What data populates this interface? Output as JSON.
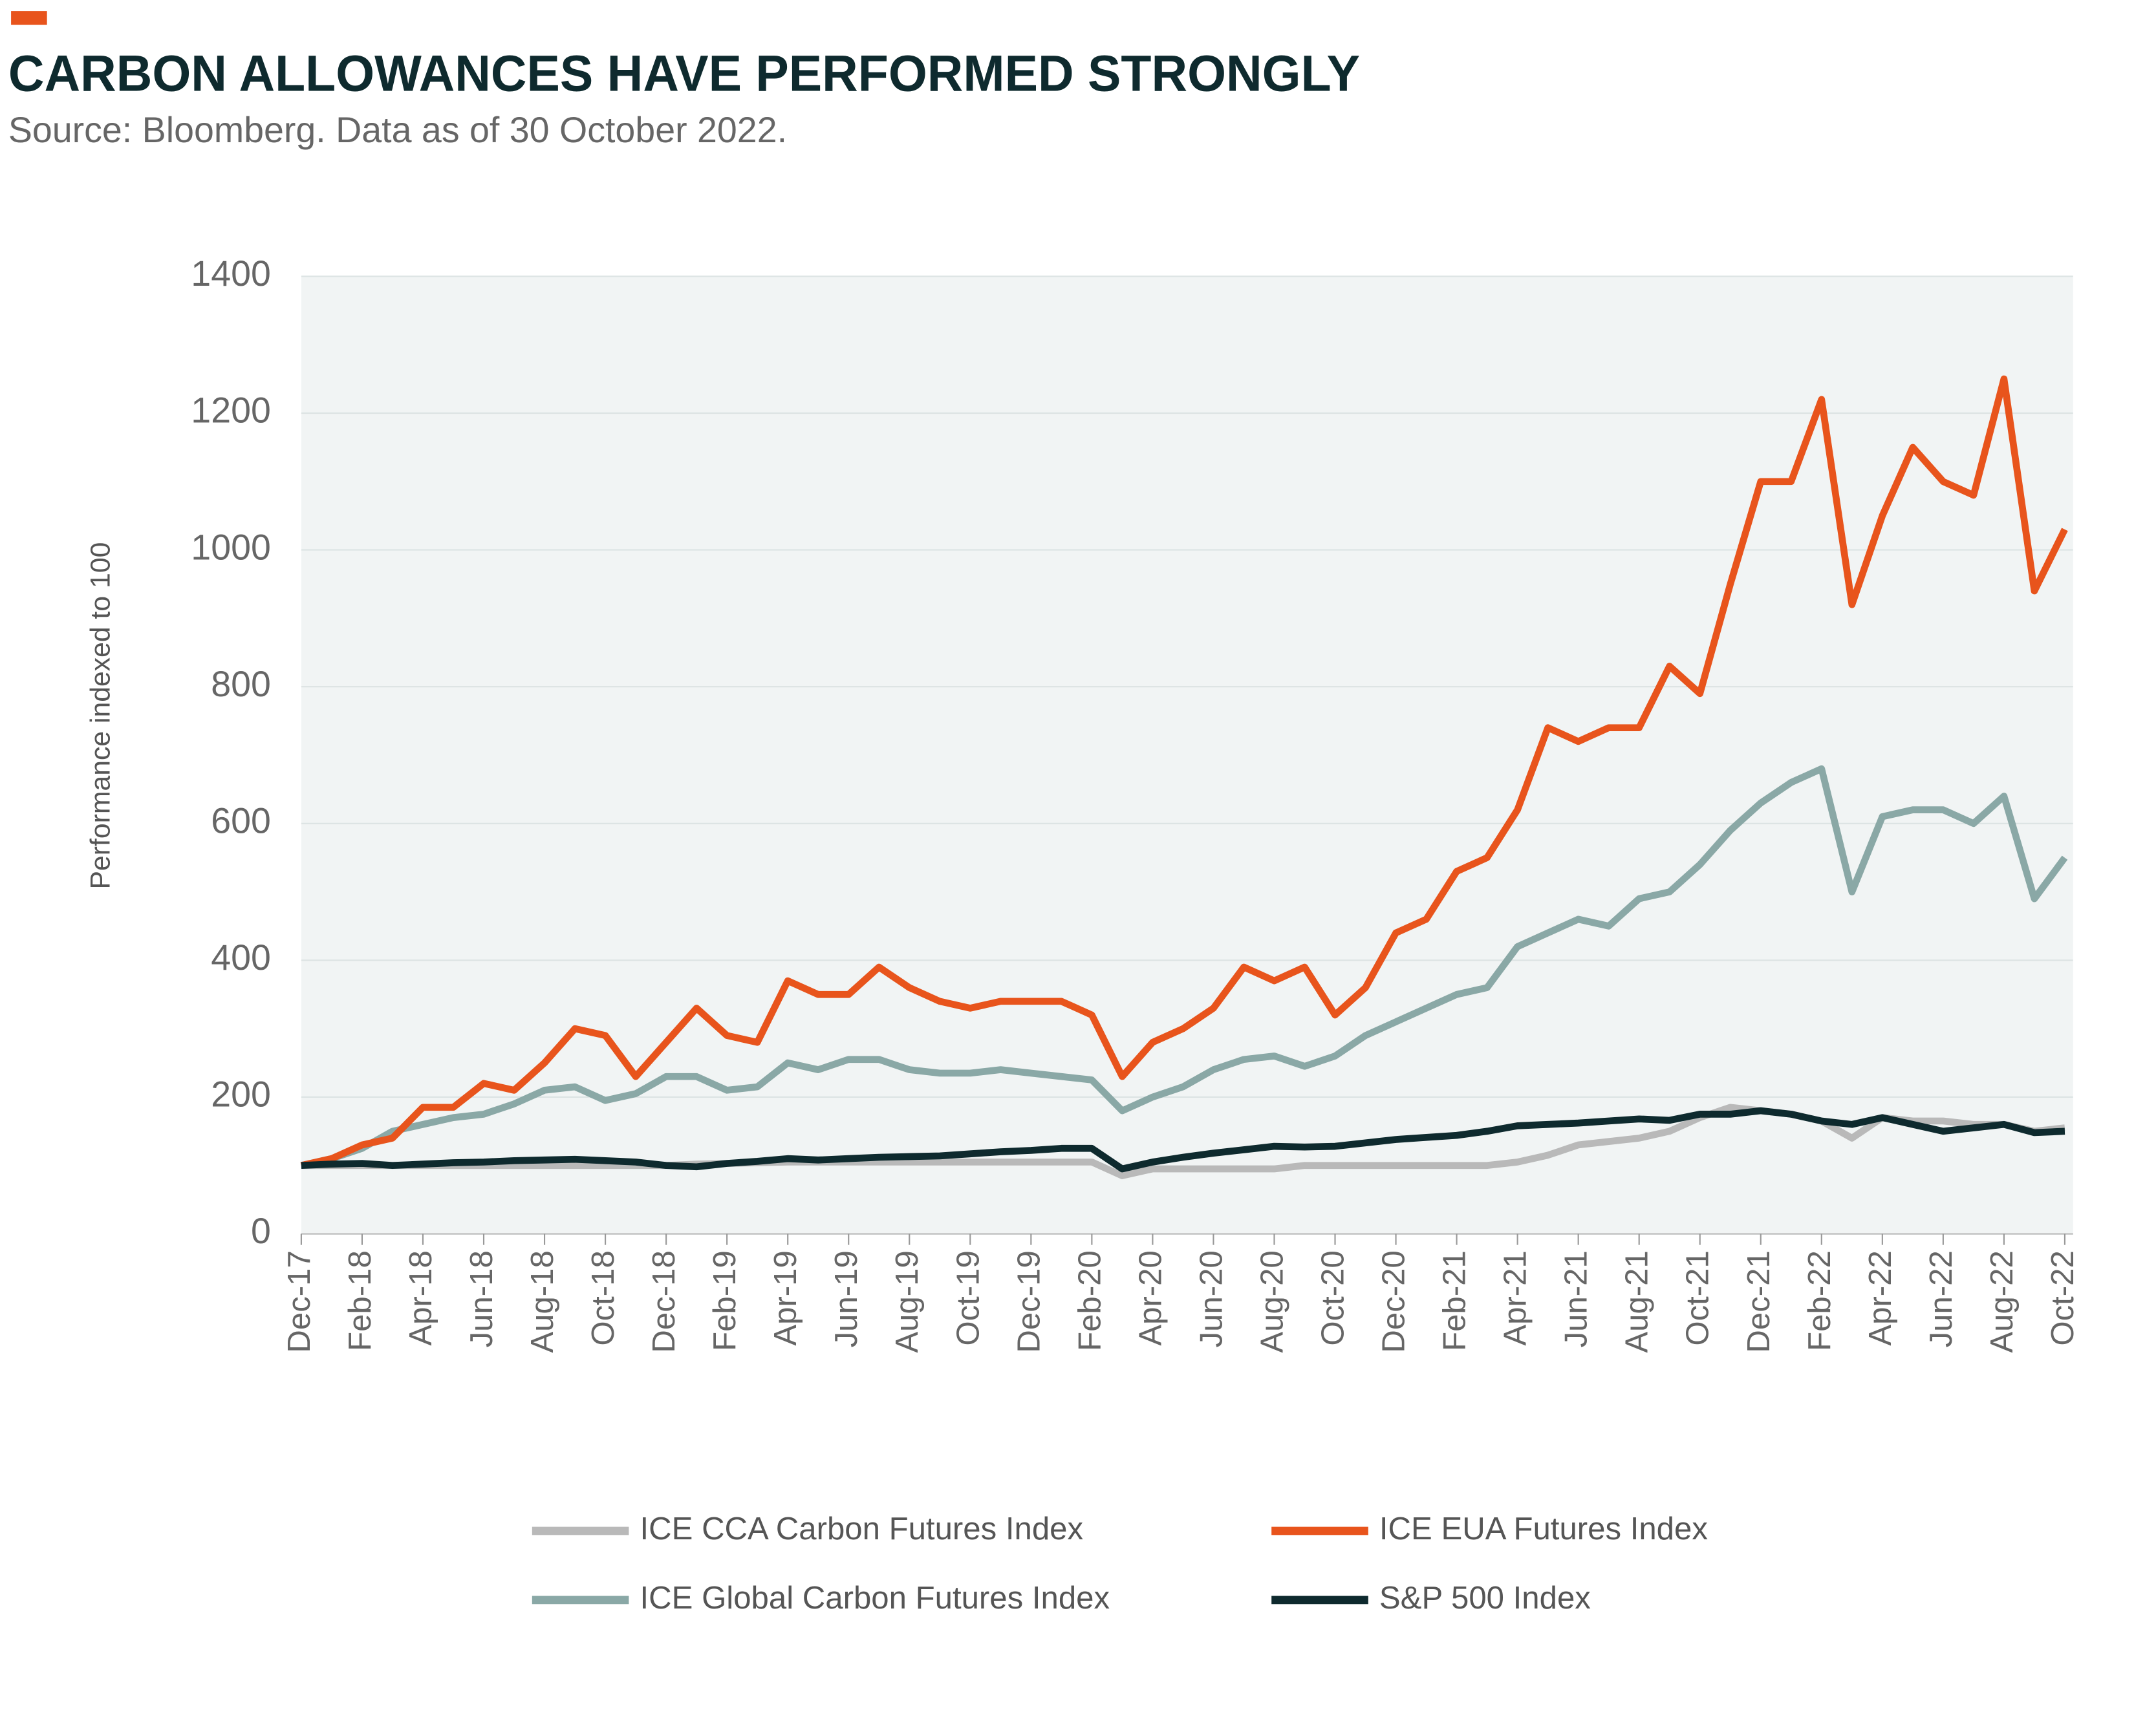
{
  "chart_data": {
    "type": "line",
    "title": "CARBON ALLOWANCES HAVE PERFORMED STRONGLY",
    "subtitle": "Source: Bloomberg. Data as of 30 October 2022.",
    "y_label": "Performance indexed to 100",
    "categories": [
      "Dec-17",
      null,
      "Feb-18",
      null,
      "Apr-18",
      null,
      "Jun-18",
      null,
      "Aug-18",
      null,
      "Oct-18",
      null,
      "Dec-18",
      null,
      "Feb-19",
      null,
      "Apr-19",
      null,
      "Jun-19",
      null,
      "Aug-19",
      null,
      "Oct-19",
      null,
      "Dec-19",
      null,
      "Feb-20",
      null,
      "Apr-20",
      null,
      "Jun-20",
      null,
      "Aug-20",
      null,
      "Oct-20",
      null,
      "Dec-20",
      null,
      "Feb-21",
      null,
      "Apr-21",
      null,
      "Jun-21",
      null,
      "Aug-21",
      null,
      "Oct-21",
      null,
      "Dec-21",
      null,
      "Feb-22",
      null,
      "Apr-22",
      null,
      "Jun-22",
      null,
      "Aug-22",
      null,
      "Oct-22"
    ],
    "series": [
      {
        "name": "ICE CCA Carbon Futures Index",
        "color": "#b9b9b9",
        "values": [
          100,
          100,
          100,
          100,
          100,
          100,
          100,
          100,
          100,
          100,
          100,
          100,
          100,
          102,
          103,
          104,
          105,
          105,
          105,
          105,
          105,
          105,
          105,
          105,
          105,
          105,
          105,
          85,
          95,
          95,
          95,
          95,
          95,
          100,
          100,
          100,
          100,
          100,
          100,
          100,
          105,
          115,
          130,
          135,
          140,
          150,
          170,
          185,
          180,
          175,
          165,
          140,
          170,
          165,
          165,
          160,
          160,
          150,
          155
        ]
      },
      {
        "name": "ICE EUA Futures Index",
        "color": "#e8541c",
        "values": [
          100,
          110,
          130,
          140,
          185,
          185,
          220,
          210,
          250,
          300,
          290,
          230,
          280,
          330,
          290,
          280,
          370,
          350,
          350,
          390,
          360,
          340,
          330,
          340,
          340,
          340,
          320,
          230,
          280,
          300,
          330,
          390,
          370,
          390,
          320,
          360,
          440,
          460,
          530,
          550,
          620,
          740,
          720,
          740,
          740,
          830,
          790,
          950,
          1100,
          1100,
          1220,
          920,
          1050,
          1150,
          1100,
          1080,
          1250,
          940,
          1030
        ]
      },
      {
        "name": "ICE Global Carbon Futures Index",
        "color": "#8aa8a6",
        "values": [
          100,
          110,
          125,
          150,
          160,
          170,
          175,
          190,
          210,
          215,
          195,
          205,
          230,
          230,
          210,
          215,
          250,
          240,
          255,
          255,
          240,
          235,
          235,
          240,
          235,
          230,
          225,
          180,
          200,
          215,
          240,
          255,
          260,
          245,
          260,
          290,
          310,
          330,
          350,
          360,
          420,
          440,
          460,
          450,
          490,
          500,
          540,
          590,
          630,
          660,
          680,
          500,
          610,
          620,
          620,
          600,
          640,
          490,
          550
        ]
      },
      {
        "name": "S&P 500 Index",
        "color": "#0e2a2e",
        "values": [
          100,
          102,
          103,
          100,
          102,
          104,
          105,
          107,
          108,
          109,
          107,
          105,
          100,
          98,
          103,
          106,
          110,
          108,
          110,
          112,
          113,
          114,
          117,
          120,
          122,
          125,
          125,
          95,
          105,
          112,
          118,
          123,
          128,
          127,
          128,
          133,
          138,
          141,
          144,
          150,
          158,
          160,
          162,
          165,
          168,
          166,
          175,
          175,
          180,
          175,
          165,
          160,
          170,
          160,
          150,
          155,
          160,
          148,
          150
        ]
      }
    ],
    "ylim": [
      0,
      1400
    ],
    "yticks": [
      0,
      200,
      400,
      600,
      800,
      1000,
      1200,
      1400
    ],
    "grid": true
  }
}
